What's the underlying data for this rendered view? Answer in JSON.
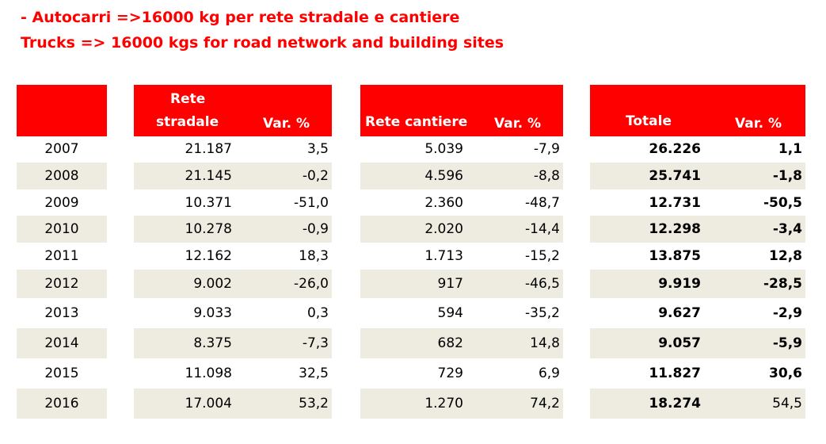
{
  "title": {
    "line1": "- Autocarri =>16000 kg per rete stradale e cantiere",
    "line2": "Trucks => 16000 kgs for road network and building sites"
  },
  "headers": {
    "year": "",
    "road_line1": "Rete",
    "road_line2": "stradale",
    "road_var": "Var. %",
    "site": "Rete cantiere",
    "site_var": "Var. %",
    "total": "Totale",
    "total_var": "Var. %"
  },
  "colors": {
    "header_bg": "#ff0000",
    "header_text": "#ffffff",
    "title": "#ff0000",
    "band": "#eeece1"
  },
  "rows": [
    {
      "year": "2007",
      "road": "21.187",
      "road_var": "3,5",
      "site": "5.039",
      "site_var": "-7,9",
      "total": "26.226",
      "total_var": "1,1",
      "total_var_bold": true
    },
    {
      "year": "2008",
      "road": "21.145",
      "road_var": "-0,2",
      "site": "4.596",
      "site_var": "-8,8",
      "total": "25.741",
      "total_var": "-1,8",
      "total_var_bold": true
    },
    {
      "year": "2009",
      "road": "10.371",
      "road_var": "-51,0",
      "site": "2.360",
      "site_var": "-48,7",
      "total": "12.731",
      "total_var": "-50,5",
      "total_var_bold": true
    },
    {
      "year": "2010",
      "road": "10.278",
      "road_var": "-0,9",
      "site": "2.020",
      "site_var": "-14,4",
      "total": "12.298",
      "total_var": "-3,4",
      "total_var_bold": true
    },
    {
      "year": "2011",
      "road": "12.162",
      "road_var": "18,3",
      "site": "1.713",
      "site_var": "-15,2",
      "total": "13.875",
      "total_var": "12,8",
      "total_var_bold": true
    },
    {
      "year": "2012",
      "road": "9.002",
      "road_var": "-26,0",
      "site": "917",
      "site_var": "-46,5",
      "total": "9.919",
      "total_var": "-28,5",
      "total_var_bold": true
    },
    {
      "year": "2013",
      "road": "9.033",
      "road_var": "0,3",
      "site": "594",
      "site_var": "-35,2",
      "total": "9.627",
      "total_var": "-2,9",
      "total_var_bold": true
    },
    {
      "year": "2014",
      "road": "8.375",
      "road_var": "-7,3",
      "site": "682",
      "site_var": "14,8",
      "total": "9.057",
      "total_var": "-5,9",
      "total_var_bold": true
    },
    {
      "year": "2015",
      "road": "11.098",
      "road_var": "32,5",
      "site": "729",
      "site_var": "6,9",
      "total": "11.827",
      "total_var": "30,6",
      "total_var_bold": true
    },
    {
      "year": "2016",
      "road": "17.004",
      "road_var": "53,2",
      "site": "1.270",
      "site_var": "74,2",
      "total": "18.274",
      "total_var": "54,5",
      "total_var_bold": false
    }
  ]
}
